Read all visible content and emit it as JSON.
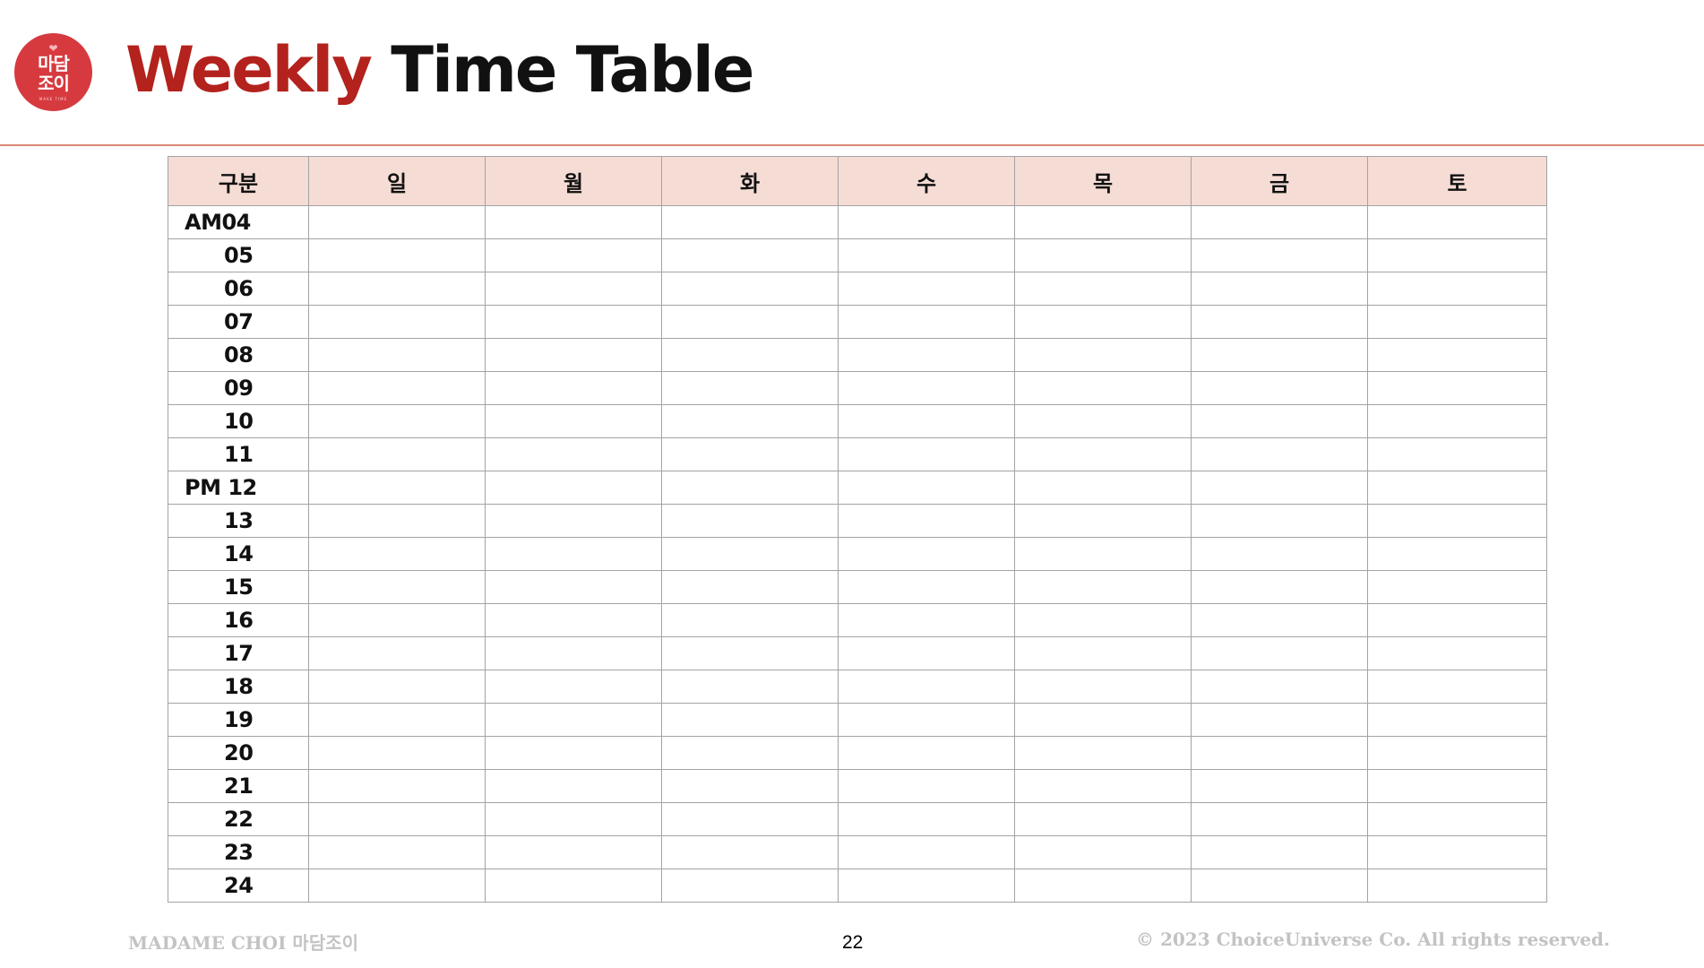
{
  "logo": {
    "line1": "마담",
    "line2": "조이",
    "tagline": "MAKE TIME"
  },
  "header": {
    "title_accent": "Weekly",
    "title_rest": "Time Table"
  },
  "table": {
    "headers": [
      "구분",
      "일",
      "월",
      "화",
      "수",
      "목",
      "금",
      "토"
    ],
    "rows": [
      "AM04",
      "05",
      "06",
      "07",
      "08",
      "09",
      "10",
      "11",
      "PM 12",
      "13",
      "14",
      "15",
      "16",
      "17",
      "18",
      "19",
      "20",
      "21",
      "22",
      "23",
      "24"
    ]
  },
  "footer": {
    "left": "MADAME CHOI 마담조이",
    "page_number": "22",
    "copyright": "© 2023 ChoiceUniverse Co. All rights reserved."
  },
  "colors": {
    "accent": "#b3221c",
    "logo_bg": "#d63a3f",
    "header_row_bg": "#f5dcd5",
    "divider": "#d98872",
    "footer_text": "#c3c3c3"
  }
}
